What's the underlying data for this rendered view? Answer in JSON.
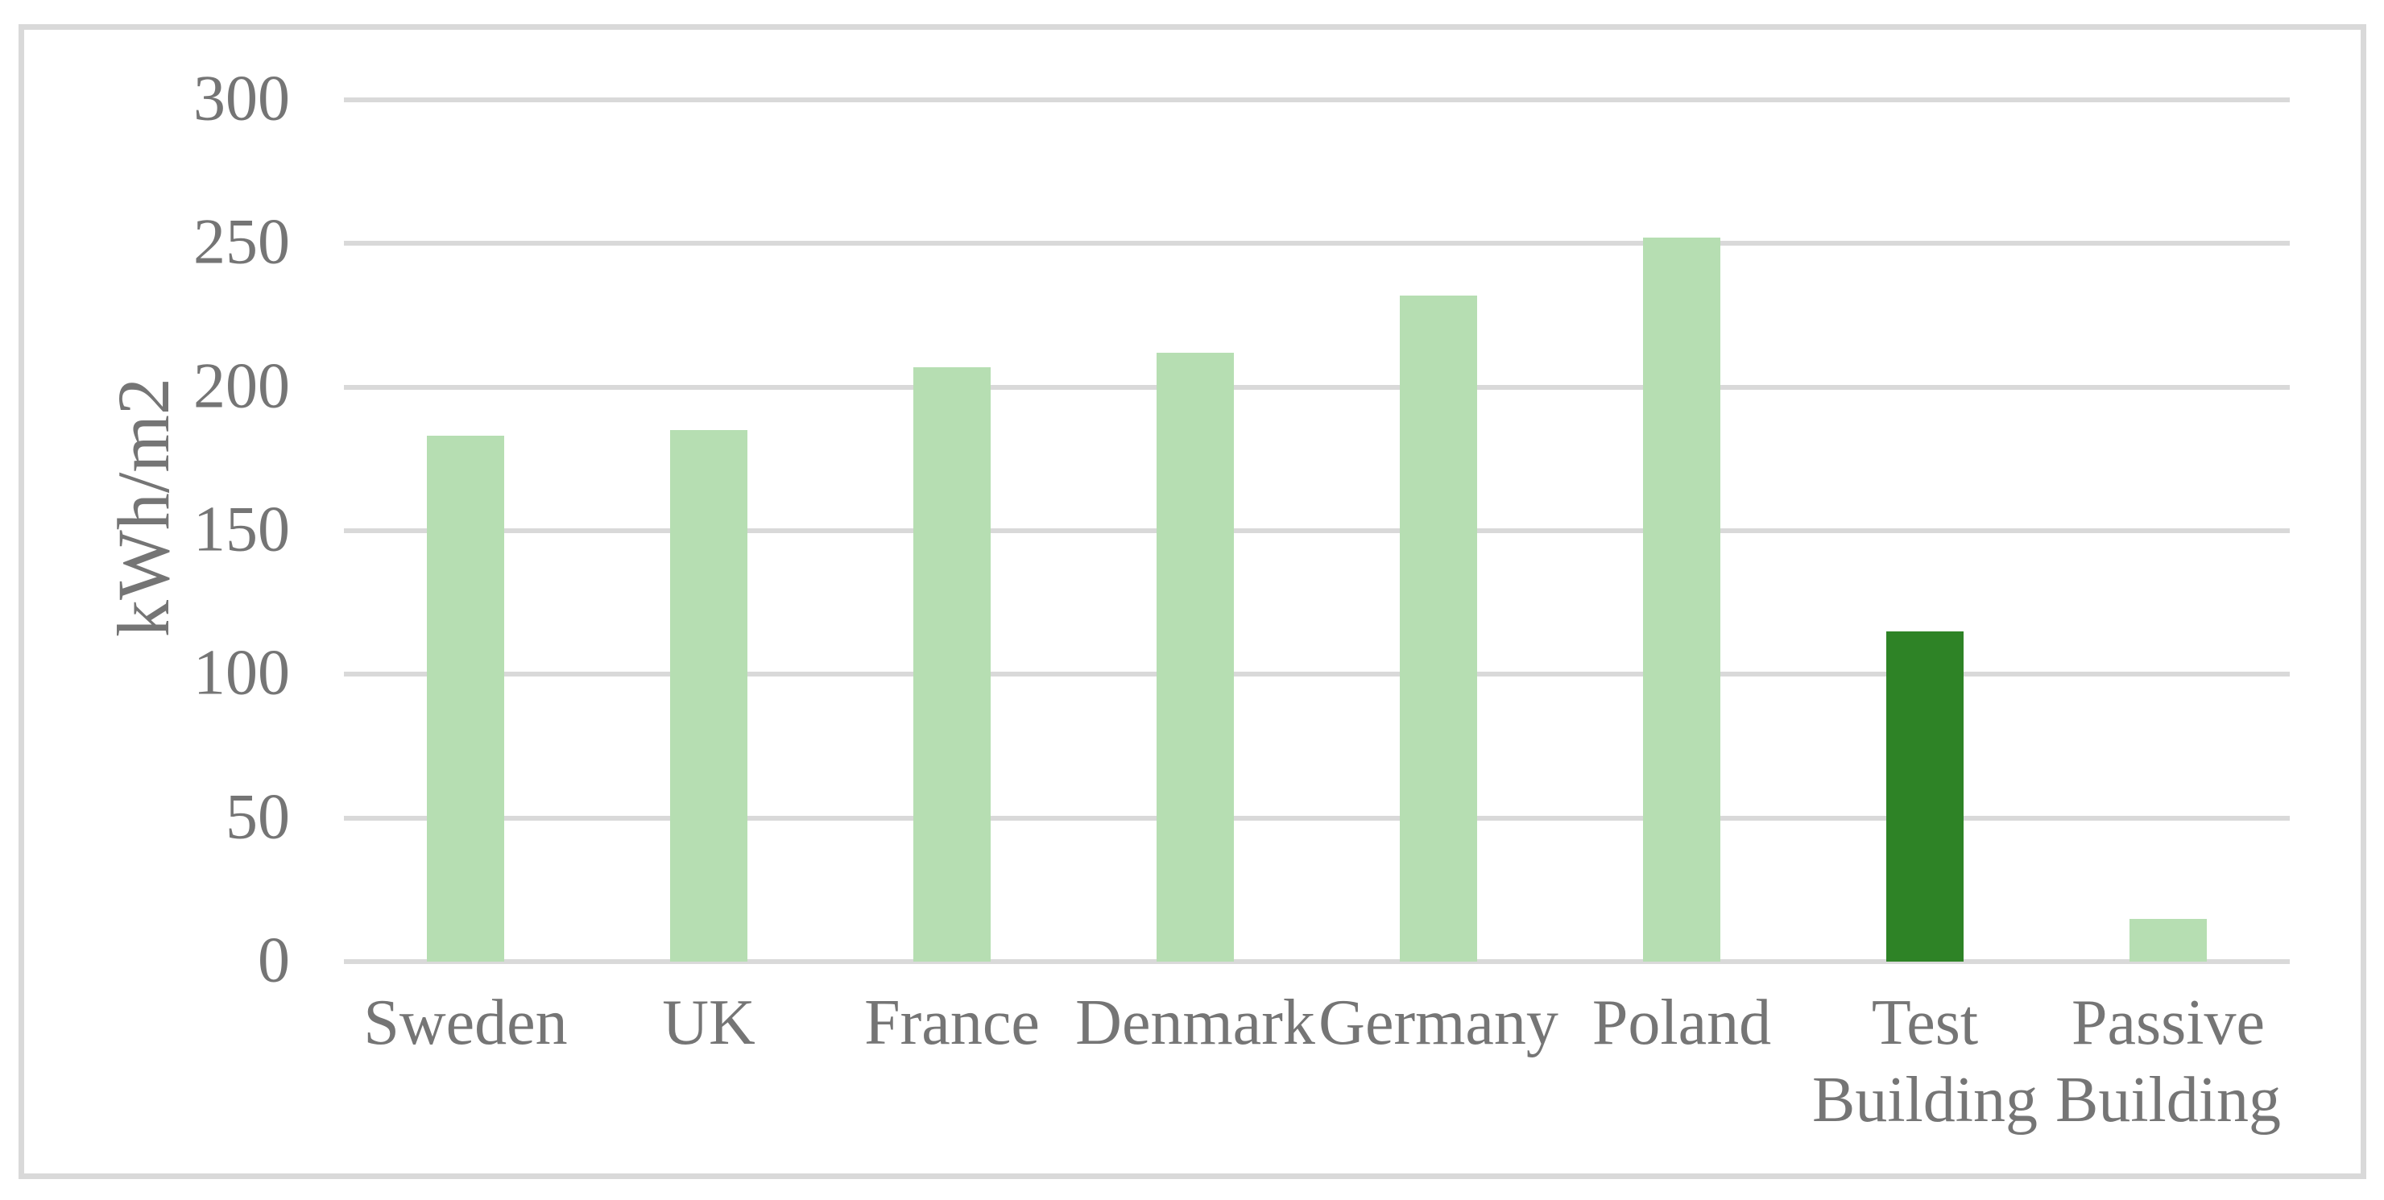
{
  "chart_data": {
    "type": "bar",
    "title": "",
    "xlabel": "",
    "ylabel": "kWh/m2",
    "categories": [
      "Sweden",
      "UK",
      "France",
      "Denmark",
      "Germany",
      "Poland",
      "Test Building",
      "Passive Building"
    ],
    "values": [
      183,
      185,
      207,
      212,
      232,
      252,
      115,
      15
    ],
    "bar_colors": [
      "#b6deb2",
      "#b6deb2",
      "#b6deb2",
      "#b6deb2",
      "#b6deb2",
      "#b6deb2",
      "#2e8326",
      "#b6deb2"
    ],
    "ylim": [
      0,
      300
    ],
    "yticks": [
      0,
      50,
      100,
      150,
      200,
      250,
      300
    ],
    "grid": "horizontal",
    "legend": "none"
  },
  "styles": {
    "bar_light_green": "#b6deb2",
    "bar_dark_green": "#2e8326",
    "gridline_color": "#d9d9d9",
    "frame_border_color": "#d9d9d9",
    "text_color": "#757575",
    "background": "#ffffff"
  }
}
